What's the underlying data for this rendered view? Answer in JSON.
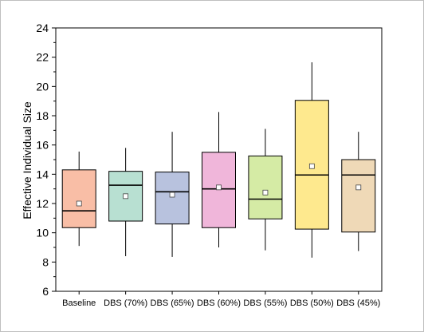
{
  "chart_data": {
    "type": "box",
    "ylabel": "Effective Individual Size",
    "xlabel": "",
    "ylim": [
      6,
      24
    ],
    "yticks": [
      6,
      8,
      10,
      12,
      14,
      16,
      18,
      20,
      22,
      24
    ],
    "grid": false,
    "legend": "none",
    "categories": [
      "Baseline",
      "DBS (70%)",
      "DBS (65%)",
      "DBS (60%)",
      "DBS (55%)",
      "DBS (50%)",
      "DBS (45%)"
    ],
    "series": [
      {
        "category": "Baseline",
        "whisker_low": 9.1,
        "q1": 10.35,
        "median": 11.5,
        "q3": 14.3,
        "whisker_high": 15.55,
        "mean": 12.0,
        "color": "#f9bea6"
      },
      {
        "category": "DBS (70%)",
        "whisker_low": 8.4,
        "q1": 10.8,
        "median": 13.25,
        "q3": 14.2,
        "whisker_high": 15.8,
        "mean": 12.5,
        "color": "#b8e0d2"
      },
      {
        "category": "DBS (65%)",
        "whisker_low": 8.35,
        "q1": 10.6,
        "median": 12.8,
        "q3": 14.15,
        "whisker_high": 16.9,
        "mean": 12.6,
        "color": "#b8c2de"
      },
      {
        "category": "DBS (60%)",
        "whisker_low": 9.0,
        "q1": 10.35,
        "median": 13.0,
        "q3": 15.5,
        "whisker_high": 18.25,
        "mean": 13.1,
        "color": "#f0b6da"
      },
      {
        "category": "DBS (55%)",
        "whisker_low": 8.8,
        "q1": 10.95,
        "median": 12.3,
        "q3": 15.25,
        "whisker_high": 17.1,
        "mean": 12.75,
        "color": "#d5eba5"
      },
      {
        "category": "DBS (50%)",
        "whisker_low": 8.3,
        "q1": 10.25,
        "median": 13.95,
        "q3": 19.05,
        "whisker_high": 21.65,
        "mean": 14.55,
        "color": "#fee98e"
      },
      {
        "category": "DBS (45%)",
        "whisker_low": 8.75,
        "q1": 10.05,
        "median": 13.95,
        "q3": 15.0,
        "whisker_high": 16.9,
        "mean": 13.1,
        "color": "#efd9b7"
      }
    ]
  }
}
